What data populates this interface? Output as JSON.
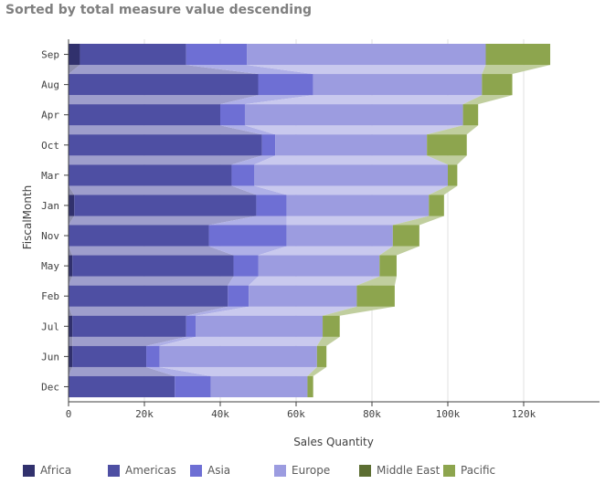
{
  "chart_data": {
    "type": "bar",
    "orientation": "horizontal",
    "stacked": true,
    "title": "Sorted by total measure value descending",
    "xlabel": "Sales Quantity",
    "ylabel": "FiscalMonth",
    "xlim": [
      0,
      140000
    ],
    "x_ticks": [
      0,
      20000,
      40000,
      60000,
      80000,
      100000,
      120000
    ],
    "x_tick_labels": [
      "0",
      "20k",
      "40k",
      "60k",
      "80k",
      "100k",
      "120k"
    ],
    "grid": "vertical",
    "legend_position": "bottom",
    "categories": [
      "Sep",
      "Aug",
      "Apr",
      "Oct",
      "Mar",
      "Jan",
      "Nov",
      "May",
      "Feb",
      "Jul",
      "Jun",
      "Dec"
    ],
    "series": [
      {
        "name": "Africa",
        "color": "#31316d",
        "values": [
          3000,
          0,
          0,
          0,
          0,
          1500,
          0,
          1000,
          0,
          1000,
          1000,
          0
        ]
      },
      {
        "name": "Americas",
        "color": "#4e4fa3",
        "values": [
          28000,
          50000,
          40000,
          51000,
          43000,
          48000,
          37000,
          42500,
          42000,
          30000,
          19500,
          28000
        ]
      },
      {
        "name": "Asia",
        "color": "#6e6fd4",
        "values": [
          16000,
          14500,
          6500,
          3500,
          6000,
          8000,
          20500,
          6500,
          5500,
          2500,
          3500,
          9500
        ]
      },
      {
        "name": "Europe",
        "color": "#9c9ce0",
        "values": [
          63000,
          44500,
          57500,
          40000,
          51000,
          37500,
          28000,
          32000,
          28500,
          33500,
          41500,
          25500
        ]
      },
      {
        "name": "Middle East",
        "color": "#5c6e32",
        "values": [
          0,
          0,
          0,
          0,
          0,
          0,
          0,
          0,
          0,
          0,
          0,
          0
        ]
      },
      {
        "name": "Pacific",
        "color": "#8da54e",
        "values": [
          17000,
          8000,
          4000,
          10500,
          2500,
          4000,
          7000,
          4500,
          10000,
          4500,
          2500,
          1500
        ]
      }
    ]
  }
}
